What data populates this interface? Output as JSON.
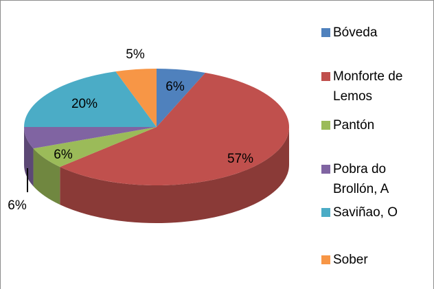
{
  "chart_data": {
    "type": "pie",
    "categories": [
      "Bóveda",
      "Monforte de Lemos",
      "Pantón",
      "Pobra do Brollón, A",
      "Saviñao, O",
      "Sober"
    ],
    "values": [
      6,
      57,
      6,
      6,
      20,
      5
    ],
    "value_labels": [
      "6%",
      "57%",
      "6%",
      "6%",
      "20%",
      "5%"
    ],
    "colors": [
      "#4f81bd",
      "#c0504d",
      "#9bbb59",
      "#8064a2",
      "#4bacc6",
      "#f79646"
    ],
    "legend": "right"
  }
}
